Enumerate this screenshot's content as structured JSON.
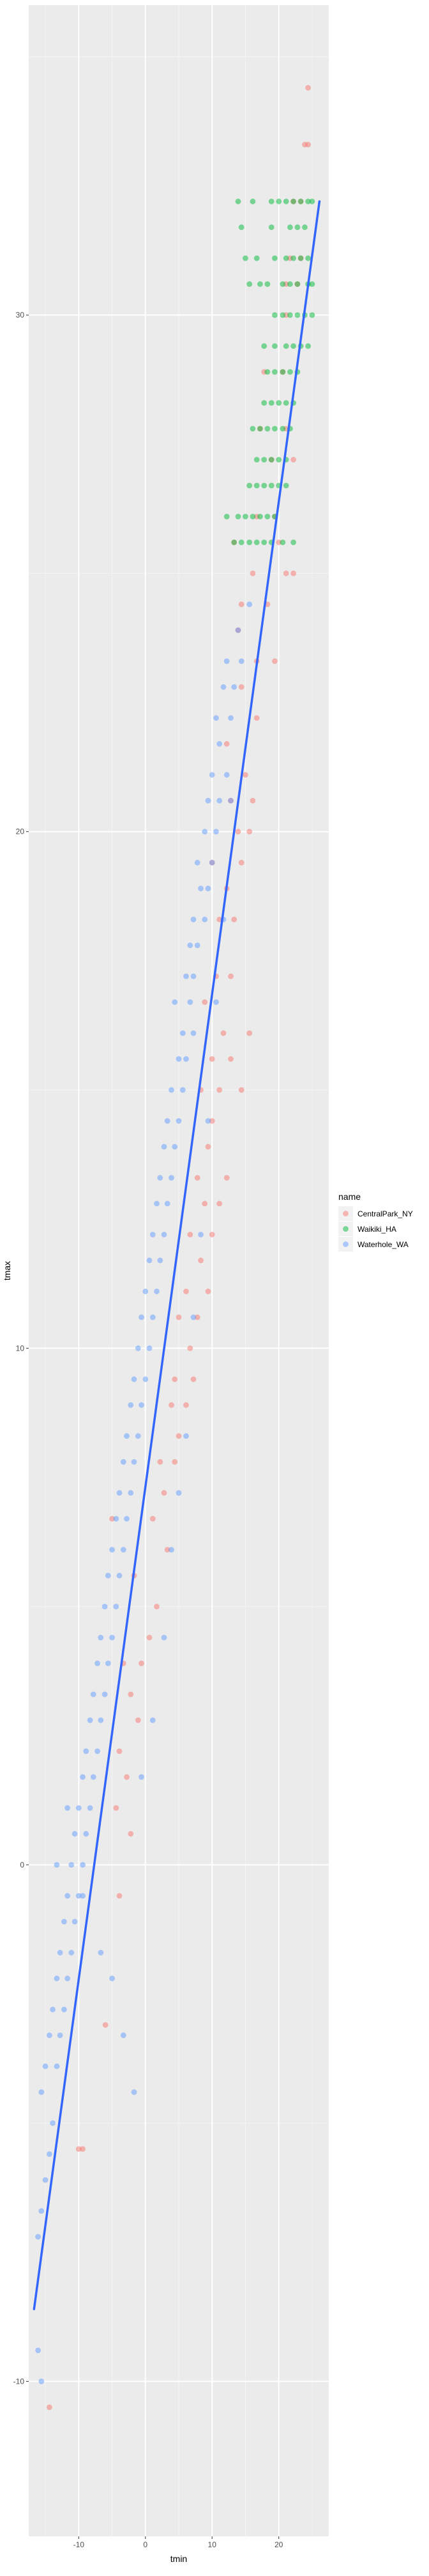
{
  "chart_data": {
    "type": "scatter",
    "xlabel": "tmin",
    "ylabel": "tmax",
    "xlim": [
      -17.5,
      27.5
    ],
    "ylim": [
      -13.0,
      36.0
    ],
    "x_ticks": [
      -10,
      0,
      10,
      20
    ],
    "y_ticks": [
      -10,
      0,
      10,
      20,
      30
    ],
    "grid": true,
    "legend": {
      "title": "name",
      "position": "right"
    },
    "series": [
      {
        "name": "CentralPark_NY",
        "color": "#F8766D",
        "points": [
          [
            24.4,
            34.4
          ],
          [
            23.9,
            33.3
          ],
          [
            24.4,
            33.3
          ],
          [
            22.2,
            32.2
          ],
          [
            23.3,
            32.2
          ],
          [
            21.7,
            31.1
          ],
          [
            23.3,
            31.1
          ],
          [
            21.1,
            30.6
          ],
          [
            22.8,
            30.6
          ],
          [
            21.1,
            30.0
          ],
          [
            17.8,
            28.9
          ],
          [
            20.6,
            28.9
          ],
          [
            17.2,
            27.8
          ],
          [
            21.1,
            27.8
          ],
          [
            18.9,
            27.2
          ],
          [
            22.2,
            27.2
          ],
          [
            16.7,
            26.1
          ],
          [
            19.4,
            26.1
          ],
          [
            13.3,
            25.6
          ],
          [
            20.0,
            25.6
          ],
          [
            16.1,
            25.0
          ],
          [
            21.1,
            25.0
          ],
          [
            22.2,
            25.0
          ],
          [
            14.4,
            24.4
          ],
          [
            18.3,
            24.4
          ],
          [
            13.9,
            23.9
          ],
          [
            16.7,
            23.3
          ],
          [
            19.4,
            23.3
          ],
          [
            14.4,
            22.8
          ],
          [
            16.7,
            22.2
          ],
          [
            12.2,
            21.7
          ],
          [
            15.0,
            21.1
          ],
          [
            12.8,
            20.6
          ],
          [
            16.1,
            20.6
          ],
          [
            13.9,
            20.0
          ],
          [
            15.6,
            20.0
          ],
          [
            10.0,
            19.4
          ],
          [
            14.4,
            19.4
          ],
          [
            12.2,
            18.9
          ],
          [
            11.1,
            18.3
          ],
          [
            13.3,
            18.3
          ],
          [
            10.6,
            17.2
          ],
          [
            12.8,
            17.2
          ],
          [
            8.9,
            16.7
          ],
          [
            11.7,
            16.1
          ],
          [
            15.6,
            16.1
          ],
          [
            10.0,
            15.6
          ],
          [
            12.8,
            15.6
          ],
          [
            8.3,
            15.0
          ],
          [
            11.1,
            15.0
          ],
          [
            14.4,
            15.0
          ],
          [
            10.0,
            14.4
          ],
          [
            9.4,
            13.9
          ],
          [
            12.2,
            13.3
          ],
          [
            7.8,
            13.3
          ],
          [
            8.9,
            12.8
          ],
          [
            11.1,
            12.8
          ],
          [
            6.7,
            12.2
          ],
          [
            10.0,
            12.2
          ],
          [
            8.3,
            11.7
          ],
          [
            6.1,
            11.1
          ],
          [
            9.4,
            11.1
          ],
          [
            5.0,
            10.6
          ],
          [
            7.8,
            10.6
          ],
          [
            6.7,
            10.0
          ],
          [
            4.4,
            9.4
          ],
          [
            7.2,
            9.4
          ],
          [
            3.9,
            8.9
          ],
          [
            6.1,
            8.9
          ],
          [
            5.0,
            8.3
          ],
          [
            2.2,
            7.8
          ],
          [
            4.4,
            7.8
          ],
          [
            2.8,
            7.2
          ],
          [
            -5.0,
            6.7
          ],
          [
            1.1,
            6.7
          ],
          [
            3.3,
            6.1
          ],
          [
            -1.7,
            5.6
          ],
          [
            1.7,
            5.0
          ],
          [
            0.6,
            4.4
          ],
          [
            -3.3,
            3.9
          ],
          [
            -0.6,
            3.9
          ],
          [
            -2.2,
            3.3
          ],
          [
            -1.1,
            2.8
          ],
          [
            -3.9,
            2.2
          ],
          [
            -2.8,
            1.7
          ],
          [
            -4.4,
            1.1
          ],
          [
            -2.2,
            0.6
          ],
          [
            -3.9,
            -0.6
          ],
          [
            -6.0,
            -3.1
          ],
          [
            -9.4,
            -5.5
          ],
          [
            -10.0,
            -5.5
          ],
          [
            -14.4,
            -10.5
          ]
        ]
      },
      {
        "name": "Waikiki_HA",
        "color": "#00BA38",
        "points": [
          [
            18.9,
            32.2
          ],
          [
            20.0,
            32.2
          ],
          [
            21.1,
            32.2
          ],
          [
            22.2,
            32.2
          ],
          [
            23.3,
            32.2
          ],
          [
            24.4,
            32.2
          ],
          [
            25.0,
            32.2
          ],
          [
            13.9,
            32.2
          ],
          [
            16.1,
            32.2
          ],
          [
            14.4,
            31.7
          ],
          [
            18.9,
            31.7
          ],
          [
            21.7,
            31.7
          ],
          [
            22.8,
            31.7
          ],
          [
            23.9,
            31.7
          ],
          [
            15.0,
            31.1
          ],
          [
            16.7,
            31.1
          ],
          [
            19.4,
            31.1
          ],
          [
            21.1,
            31.1
          ],
          [
            22.2,
            31.1
          ],
          [
            23.3,
            31.1
          ],
          [
            24.4,
            31.1
          ],
          [
            21.7,
            30.6
          ],
          [
            22.8,
            30.6
          ],
          [
            24.4,
            30.6
          ],
          [
            25.0,
            30.6
          ],
          [
            15.6,
            30.6
          ],
          [
            17.2,
            30.6
          ],
          [
            18.3,
            30.6
          ],
          [
            20.6,
            30.6
          ],
          [
            19.4,
            30.0
          ],
          [
            20.6,
            30.0
          ],
          [
            21.7,
            30.0
          ],
          [
            22.8,
            30.0
          ],
          [
            23.9,
            30.0
          ],
          [
            25.0,
            30.0
          ],
          [
            17.8,
            29.4
          ],
          [
            19.4,
            29.4
          ],
          [
            21.1,
            29.4
          ],
          [
            22.2,
            29.4
          ],
          [
            23.3,
            29.4
          ],
          [
            24.4,
            29.4
          ],
          [
            18.3,
            28.9
          ],
          [
            19.4,
            28.9
          ],
          [
            20.6,
            28.9
          ],
          [
            21.7,
            28.9
          ],
          [
            22.8,
            28.9
          ],
          [
            17.8,
            28.3
          ],
          [
            18.9,
            28.3
          ],
          [
            20.0,
            28.3
          ],
          [
            21.1,
            28.3
          ],
          [
            22.2,
            28.3
          ],
          [
            16.1,
            27.8
          ],
          [
            17.2,
            27.8
          ],
          [
            18.3,
            27.8
          ],
          [
            19.4,
            27.8
          ],
          [
            20.6,
            27.8
          ],
          [
            21.7,
            27.8
          ],
          [
            16.7,
            27.2
          ],
          [
            17.8,
            27.2
          ],
          [
            18.9,
            27.2
          ],
          [
            20.0,
            27.2
          ],
          [
            21.1,
            27.2
          ],
          [
            15.6,
            26.7
          ],
          [
            16.7,
            26.7
          ],
          [
            17.8,
            26.7
          ],
          [
            18.9,
            26.7
          ],
          [
            20.0,
            26.7
          ],
          [
            21.1,
            26.7
          ],
          [
            12.2,
            26.1
          ],
          [
            13.9,
            26.1
          ],
          [
            15.0,
            26.1
          ],
          [
            16.1,
            26.1
          ],
          [
            17.2,
            26.1
          ],
          [
            18.3,
            26.1
          ],
          [
            19.4,
            26.1
          ],
          [
            13.3,
            25.6
          ],
          [
            14.4,
            25.6
          ],
          [
            15.6,
            25.6
          ],
          [
            16.7,
            25.6
          ],
          [
            17.8,
            25.6
          ],
          [
            18.9,
            25.6
          ],
          [
            20.6,
            25.6
          ],
          [
            22.2,
            25.6
          ]
        ]
      },
      {
        "name": "Waterhole_WA",
        "color": "#619CFF",
        "points": [
          [
            15.6,
            24.4
          ],
          [
            13.9,
            23.9
          ],
          [
            12.2,
            23.3
          ],
          [
            14.4,
            23.3
          ],
          [
            11.7,
            22.8
          ],
          [
            13.3,
            22.8
          ],
          [
            10.6,
            22.2
          ],
          [
            12.8,
            22.2
          ],
          [
            11.1,
            21.7
          ],
          [
            10.0,
            21.1
          ],
          [
            12.2,
            21.1
          ],
          [
            9.4,
            20.6
          ],
          [
            11.1,
            20.6
          ],
          [
            8.9,
            20.0
          ],
          [
            10.6,
            20.0
          ],
          [
            7.8,
            19.4
          ],
          [
            10.0,
            19.4
          ],
          [
            8.3,
            18.9
          ],
          [
            9.4,
            18.9
          ],
          [
            7.2,
            18.3
          ],
          [
            8.9,
            18.3
          ],
          [
            6.7,
            17.8
          ],
          [
            7.8,
            17.8
          ],
          [
            6.1,
            17.2
          ],
          [
            7.2,
            17.2
          ],
          [
            4.4,
            16.7
          ],
          [
            6.7,
            16.7
          ],
          [
            5.6,
            16.1
          ],
          [
            7.2,
            16.1
          ],
          [
            5.0,
            15.6
          ],
          [
            6.1,
            15.6
          ],
          [
            3.9,
            15.0
          ],
          [
            5.6,
            15.0
          ],
          [
            3.3,
            14.4
          ],
          [
            5.0,
            14.4
          ],
          [
            2.8,
            13.9
          ],
          [
            4.4,
            13.9
          ],
          [
            2.2,
            13.3
          ],
          [
            3.9,
            13.3
          ],
          [
            1.7,
            12.8
          ],
          [
            3.3,
            12.8
          ],
          [
            1.1,
            12.2
          ],
          [
            2.8,
            12.2
          ],
          [
            0.6,
            11.7
          ],
          [
            2.2,
            11.7
          ],
          [
            0.0,
            11.1
          ],
          [
            1.7,
            11.1
          ],
          [
            -0.6,
            10.6
          ],
          [
            1.1,
            10.6
          ],
          [
            -1.1,
            10.0
          ],
          [
            0.6,
            10.0
          ],
          [
            -1.7,
            9.4
          ],
          [
            0.0,
            9.4
          ],
          [
            -2.2,
            8.9
          ],
          [
            -0.6,
            8.9
          ],
          [
            -2.8,
            8.3
          ],
          [
            -1.1,
            8.3
          ],
          [
            -3.3,
            7.8
          ],
          [
            -1.7,
            7.8
          ],
          [
            -3.9,
            7.2
          ],
          [
            -2.2,
            7.2
          ],
          [
            -4.4,
            6.7
          ],
          [
            -2.8,
            6.7
          ],
          [
            -5.0,
            6.1
          ],
          [
            -3.3,
            6.1
          ],
          [
            -5.6,
            5.6
          ],
          [
            -3.9,
            5.6
          ],
          [
            -6.1,
            5.0
          ],
          [
            -4.4,
            5.0
          ],
          [
            -6.7,
            4.4
          ],
          [
            -5.0,
            4.4
          ],
          [
            -7.2,
            3.9
          ],
          [
            -5.6,
            3.9
          ],
          [
            -7.8,
            3.3
          ],
          [
            -6.1,
            3.3
          ],
          [
            -8.3,
            2.8
          ],
          [
            -6.7,
            2.8
          ],
          [
            -8.9,
            2.2
          ],
          [
            -7.2,
            2.2
          ],
          [
            -9.4,
            1.7
          ],
          [
            -7.8,
            1.7
          ],
          [
            -10.0,
            1.1
          ],
          [
            -8.3,
            1.1
          ],
          [
            -10.6,
            0.6
          ],
          [
            -8.9,
            0.6
          ],
          [
            -11.1,
            0.0
          ],
          [
            -9.4,
            0.0
          ],
          [
            -11.7,
            -0.6
          ],
          [
            -10.0,
            -0.6
          ],
          [
            -12.2,
            -1.1
          ],
          [
            -10.6,
            -1.1
          ],
          [
            -12.8,
            -1.7
          ],
          [
            -11.1,
            -1.7
          ],
          [
            -13.3,
            -2.2
          ],
          [
            -11.7,
            -2.2
          ],
          [
            -13.9,
            -2.8
          ],
          [
            -12.2,
            -2.8
          ],
          [
            -14.4,
            -3.3
          ],
          [
            -12.8,
            -3.3
          ],
          [
            -15.0,
            -3.9
          ],
          [
            -13.3,
            -3.9
          ],
          [
            -15.6,
            -4.4
          ],
          [
            -13.9,
            -5.0
          ],
          [
            -14.4,
            -5.6
          ],
          [
            -15.0,
            -6.1
          ],
          [
            -15.6,
            -6.7
          ],
          [
            -16.1,
            -7.2
          ],
          [
            -16.1,
            -9.4
          ],
          [
            -15.6,
            -10.0
          ],
          [
            -13.3,
            0.0
          ],
          [
            -11.7,
            1.1
          ],
          [
            -9.4,
            -0.6
          ],
          [
            -6.7,
            -1.7
          ],
          [
            -5.0,
            -2.2
          ],
          [
            -3.3,
            -3.3
          ],
          [
            -1.7,
            -4.4
          ],
          [
            -0.6,
            1.7
          ],
          [
            1.1,
            2.8
          ],
          [
            2.8,
            4.4
          ],
          [
            3.9,
            6.1
          ],
          [
            5.0,
            7.2
          ],
          [
            6.1,
            8.3
          ],
          [
            7.2,
            10.6
          ],
          [
            8.3,
            12.2
          ],
          [
            9.4,
            14.4
          ],
          [
            10.6,
            16.7
          ],
          [
            11.7,
            18.3
          ],
          [
            12.8,
            20.6
          ]
        ]
      }
    ],
    "fit_line": {
      "color": "#3366FF",
      "x": [
        -16.7,
        26.1
      ],
      "y": [
        -8.6,
        32.2
      ]
    }
  }
}
